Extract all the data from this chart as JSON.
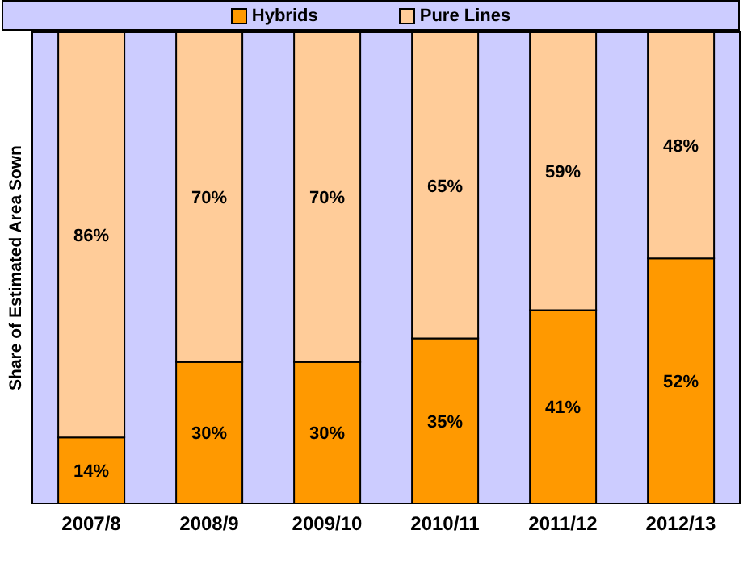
{
  "chart_data": {
    "type": "bar",
    "ylabel": "Share of Estimated Area Sown",
    "categories": [
      "2007/8",
      "2008/9",
      "2009/10",
      "2010/11",
      "2011/12",
      "2012/13"
    ],
    "stacked": true,
    "legend": "top",
    "series": [
      {
        "name": "Hybrids",
        "color": "#ff9900",
        "values": [
          14,
          30,
          30,
          35,
          41,
          52
        ],
        "value_labels": [
          "14%",
          "30%",
          "30%",
          "35%",
          "41%",
          "52%"
        ]
      },
      {
        "name": "Pure Lines",
        "color": "#ffcc99",
        "values": [
          86,
          70,
          70,
          65,
          59,
          48
        ],
        "value_labels": [
          "86%",
          "70%",
          "70%",
          "65%",
          "59%",
          "48%"
        ]
      }
    ]
  }
}
